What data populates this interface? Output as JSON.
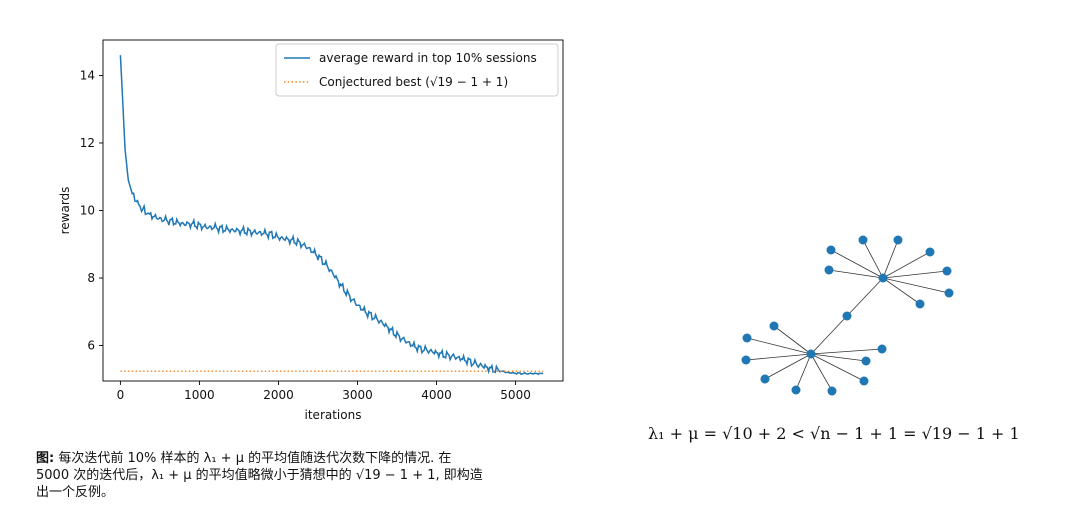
{
  "chart_data": {
    "type": "line",
    "title": "",
    "xlabel": "iterations",
    "ylabel": "rewards",
    "xlim": [
      -220,
      5600
    ],
    "ylim": [
      4.95,
      15.05
    ],
    "xticks": [
      0,
      1000,
      2000,
      3000,
      4000,
      5000
    ],
    "yticks": [
      6,
      8,
      10,
      12,
      14
    ],
    "grid": false,
    "legend_position": "top-right",
    "series": [
      {
        "name": "average reward in top 10% sessions",
        "style": "solid",
        "color": "#1f77b4",
        "x": [
          0,
          30,
          60,
          100,
          150,
          200,
          250,
          300,
          350,
          400,
          500,
          600,
          700,
          800,
          900,
          1000,
          1100,
          1200,
          1300,
          1400,
          1500,
          1600,
          1700,
          1800,
          1900,
          2000,
          2100,
          2200,
          2300,
          2400,
          2500,
          2600,
          2700,
          2800,
          2900,
          3000,
          3100,
          3200,
          3300,
          3400,
          3500,
          3600,
          3700,
          3800,
          3900,
          4000,
          4100,
          4200,
          4300,
          4400,
          4500,
          4600,
          4700,
          4800,
          4900,
          5000,
          5100,
          5200,
          5300,
          5350
        ],
        "y": [
          14.6,
          13.2,
          11.8,
          10.9,
          10.5,
          10.3,
          10.1,
          10.0,
          9.9,
          9.85,
          9.75,
          9.7,
          9.65,
          9.6,
          9.6,
          9.55,
          9.5,
          9.5,
          9.45,
          9.42,
          9.4,
          9.38,
          9.35,
          9.33,
          9.3,
          9.2,
          9.15,
          9.1,
          9.0,
          8.85,
          8.65,
          8.4,
          8.1,
          7.75,
          7.45,
          7.2,
          7.0,
          6.85,
          6.7,
          6.5,
          6.3,
          6.15,
          6.0,
          5.9,
          5.85,
          5.78,
          5.72,
          5.68,
          5.62,
          5.55,
          5.45,
          5.38,
          5.3,
          5.25,
          5.2,
          5.18,
          5.17,
          5.17,
          5.17,
          5.17
        ]
      },
      {
        "name": "Conjectured best (√19 − 1 + 1)",
        "style": "dotted",
        "color": "#ff7f0e",
        "x": [
          0,
          5350
        ],
        "y": [
          5.24,
          5.24
        ]
      }
    ]
  },
  "graph": {
    "node_color": "#1f77b4",
    "edge_color": "#333333",
    "nodes": [
      {
        "id": "hubA"
      },
      {
        "id": "hubB"
      },
      {
        "id": "mid"
      },
      {
        "id": "a1"
      },
      {
        "id": "a2"
      },
      {
        "id": "a3"
      },
      {
        "id": "a4"
      },
      {
        "id": "a5"
      },
      {
        "id": "a6"
      },
      {
        "id": "a7"
      },
      {
        "id": "a8"
      },
      {
        "id": "a9"
      },
      {
        "id": "b1"
      },
      {
        "id": "b2"
      },
      {
        "id": "b3"
      },
      {
        "id": "b4"
      },
      {
        "id": "b5"
      },
      {
        "id": "b6"
      },
      {
        "id": "b7"
      },
      {
        "id": "b8"
      }
    ],
    "edges": [
      [
        "hubA",
        "mid"
      ],
      [
        "mid",
        "hubB"
      ],
      [
        "hubA",
        "a1"
      ],
      [
        "hubA",
        "a2"
      ],
      [
        "hubA",
        "a3"
      ],
      [
        "hubA",
        "a4"
      ],
      [
        "hubA",
        "a5"
      ],
      [
        "hubA",
        "a6"
      ],
      [
        "hubA",
        "a7"
      ],
      [
        "hubA",
        "a8"
      ],
      [
        "hubA",
        "a9"
      ],
      [
        "hubB",
        "b1"
      ],
      [
        "hubB",
        "b2"
      ],
      [
        "hubB",
        "b3"
      ],
      [
        "hubB",
        "b4"
      ],
      [
        "hubB",
        "b5"
      ],
      [
        "hubB",
        "b6"
      ],
      [
        "hubB",
        "b7"
      ],
      [
        "hubB",
        "b8"
      ]
    ]
  },
  "equation": "λ₁ + μ = √10 + 2 < √n − 1 + 1 = √19 − 1 + 1",
  "caption": {
    "label": "图:",
    "line1": " 每次迭代前 10% 样本的 λ₁ + μ 的平均值随迭代次数下降的情况. 在",
    "line2": "5000 次的迭代后，λ₁ + μ 的平均值略微小于猜想中的 √19 − 1 + 1, 即构造",
    "line3": "出一个反例。"
  }
}
